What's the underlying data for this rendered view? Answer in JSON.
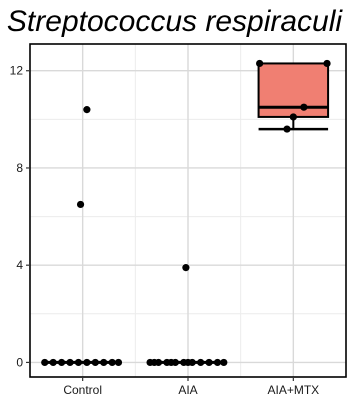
{
  "chart_data": {
    "type": "box",
    "title": "Streptococcus respiraculi",
    "xlabel": "",
    "ylabel": "",
    "categories": [
      "Control",
      "AIA",
      "AIA+MTX"
    ],
    "y_ticks": [
      0,
      4,
      8,
      12
    ],
    "ylim": [
      -0.6,
      13.1
    ],
    "grid": true,
    "box_color": "#f07f72",
    "points": {
      "Control": [
        10.4,
        6.5,
        0,
        0,
        0,
        0,
        0,
        0,
        0,
        0,
        0,
        0
      ],
      "AIA": [
        3.9,
        0,
        0,
        0,
        0,
        0,
        0,
        0,
        0,
        0,
        0,
        0,
        0,
        0
      ],
      "AIA+MTX": [
        12.3,
        12.3,
        10.5,
        10.1,
        9.6
      ]
    },
    "boxes": [
      {
        "category": "Control",
        "min": 0,
        "q1": 0,
        "median": 0,
        "q3": 0,
        "max": 0
      },
      {
        "category": "AIA",
        "min": 0,
        "q1": 0,
        "median": 0,
        "q3": 0,
        "max": 0
      },
      {
        "category": "AIA+MTX",
        "min": 9.6,
        "q1": 10.1,
        "median": 10.5,
        "q3": 12.3,
        "max": 12.3
      }
    ]
  }
}
